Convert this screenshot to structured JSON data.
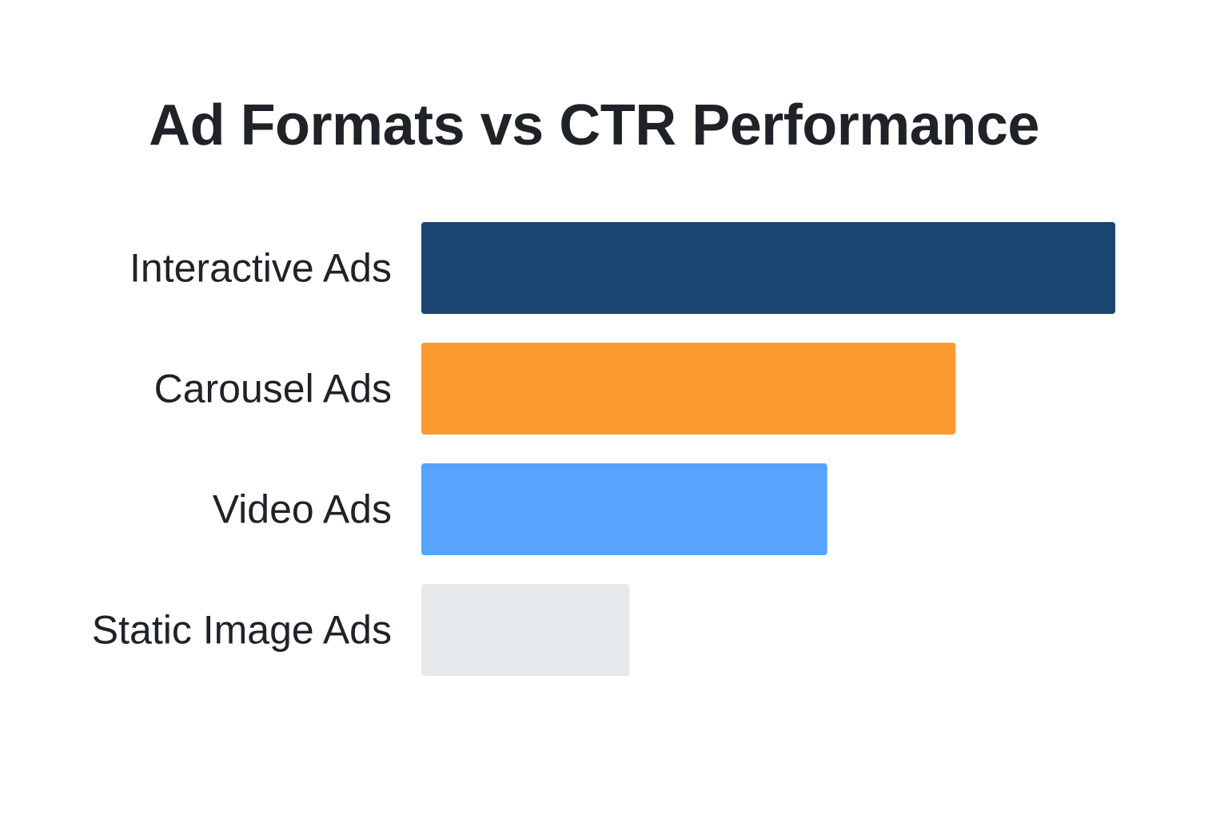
{
  "chart_data": {
    "type": "bar",
    "orientation": "horizontal",
    "title": "Ad Formats vs CTR Performance",
    "categories": [
      "Interactive Ads",
      "Carousel Ads",
      "Video Ads",
      "Static Image Ads"
    ],
    "values": [
      100,
      77,
      58.5,
      30
    ],
    "colors": [
      "#1c4471",
      "#fb9a2f",
      "#56a4fd",
      "#e6e9eb"
    ],
    "xlim": [
      0,
      100
    ],
    "grid": false,
    "legend": "none",
    "axes_visible": false
  }
}
